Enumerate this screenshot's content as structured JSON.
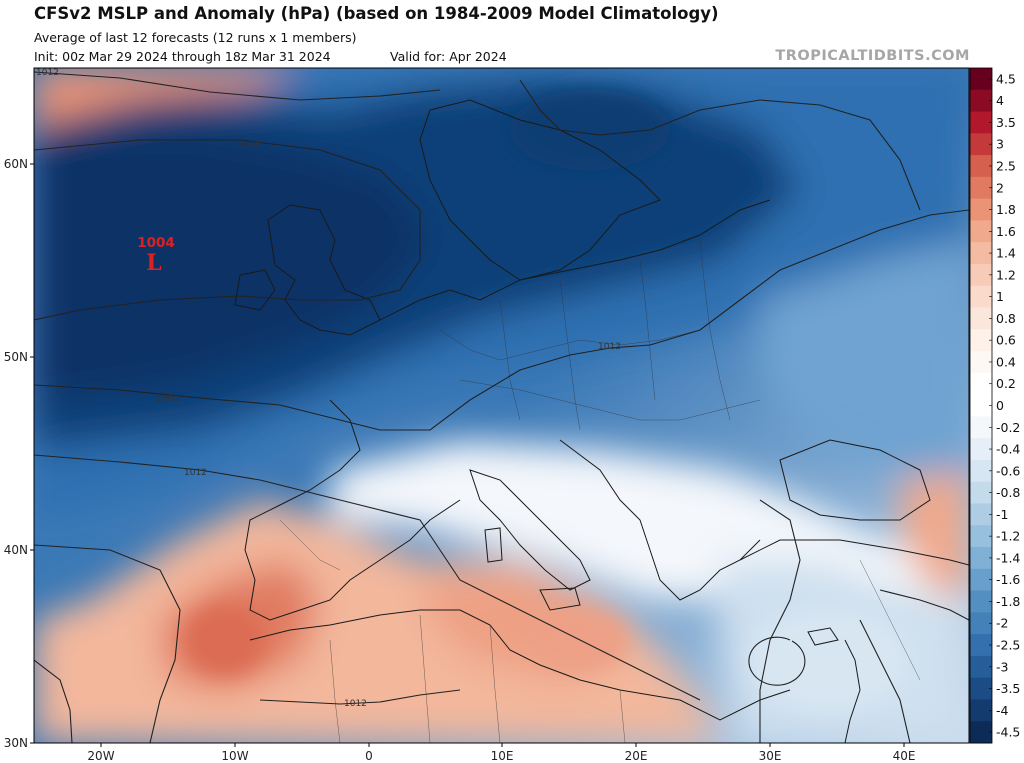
{
  "header": {
    "title": "CFSv2 MSLP and Anomaly (hPa) (based on 1984-2009 Model Climatology)",
    "subtitle": "Average of last 12 forecasts (12 runs x 1 members)",
    "init": "Init: 00z Mar 29 2024 through 18z Mar 31 2024",
    "valid": "Valid for: Apr 2024",
    "credit": "TROPICALTIDBITS.COM"
  },
  "map": {
    "lat_labels": [
      "60N",
      "50N",
      "40N",
      "30N"
    ],
    "lon_labels": [
      "20W",
      "10W",
      "0",
      "10E",
      "20E",
      "30E",
      "40E"
    ],
    "isobar_labels": [
      "1012",
      "1008",
      "1012",
      "1008",
      "1012",
      "1012"
    ],
    "low_center": {
      "value": "1004",
      "symbol": "L"
    },
    "colors": {
      "deep_blue": "#0d3a6e",
      "mid_blue": "#2f6fb1",
      "light_blue": "#a9c9e3",
      "neutral": "#ffffff",
      "light_red": "#f6c9b5",
      "red": "#e0765a"
    }
  },
  "colorbar": {
    "ticks": [
      "4.5",
      "4",
      "3.5",
      "3",
      "2.5",
      "2",
      "1.8",
      "1.6",
      "1.4",
      "1.2",
      "1",
      "0.8",
      "0.6",
      "0.4",
      "0.2",
      "0",
      "-0.2",
      "-0.4",
      "-0.6",
      "-0.8",
      "-1",
      "-1.2",
      "-1.4",
      "-1.6",
      "-1.8",
      "-2",
      "-2.5",
      "-3",
      "-3.5",
      "-4",
      "-4.5"
    ],
    "colors": [
      "#67001f",
      "#8b0a24",
      "#b2182b",
      "#c43a3a",
      "#d6604d",
      "#e07a60",
      "#ea9375",
      "#f0a98c",
      "#f4bba2",
      "#f7cbb7",
      "#f9dacb",
      "#fbe6dc",
      "#fdf1ea",
      "#fef8f4",
      "#ffffff",
      "#ffffff",
      "#f4f8fb",
      "#e6eff7",
      "#d6e6f2",
      "#c4dbec",
      "#aecde5",
      "#97bfde",
      "#80b0d6",
      "#689fcc",
      "#548fc2",
      "#4381b8",
      "#3470ad",
      "#265e9a",
      "#1b4c86",
      "#133b70",
      "#0d2b57"
    ]
  }
}
